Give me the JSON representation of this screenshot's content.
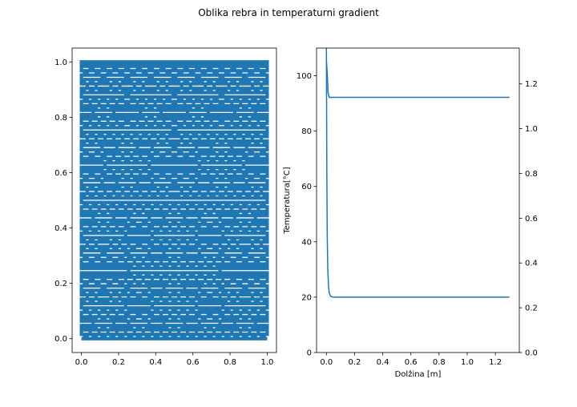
{
  "figure": {
    "title": "Oblika rebra in temperaturni gradient"
  },
  "colors": {
    "series": "#1f77b4",
    "axis": "#000000",
    "background": "#ffffff"
  },
  "chart_data": [
    {
      "type": "line",
      "description_of_shape": "space-filling Hilbert-like curve (order 6) drawn as a single thick line in the unit square",
      "curve_order": 6,
      "xlim": [
        -0.05,
        1.05
      ],
      "ylim": [
        -0.05,
        1.05
      ],
      "xticks": [
        "0.0",
        "0.2",
        "0.4",
        "0.6",
        "0.8",
        "1.0"
      ],
      "yticks": [
        "0.0",
        "0.2",
        "0.4",
        "0.6",
        "0.8",
        "1.0"
      ],
      "xlabel": "",
      "ylabel": "",
      "title": ""
    },
    {
      "type": "line",
      "xlabel": "Dolžina [m]",
      "ylabel": "Temperatura[°C]",
      "title": "",
      "xlim": [
        -0.07,
        1.37
      ],
      "ylim": [
        0,
        110
      ],
      "xticks": [
        "0.0",
        "0.2",
        "0.4",
        "0.6",
        "0.8",
        "1.0",
        "1.2"
      ],
      "yticks": [
        "0",
        "20",
        "40",
        "60",
        "80",
        "100"
      ],
      "series": [
        {
          "axis": "left",
          "x": [
            0.0,
            0.003,
            0.006,
            0.01,
            0.015,
            0.02,
            0.03,
            0.05,
            0.1,
            0.3,
            0.6,
            1.0,
            1.3
          ],
          "y": [
            110,
            65,
            42,
            30,
            24,
            21.5,
            20.3,
            20.0,
            20.0,
            20.0,
            20.0,
            20.0,
            20.0
          ]
        },
        {
          "axis": "right",
          "x": [
            0.0,
            0.006,
            0.012,
            0.02,
            0.04,
            0.1,
            0.5,
            1.0,
            1.3
          ],
          "y": [
            1.3,
            1.25,
            1.16,
            1.14,
            1.14,
            1.14,
            1.14,
            1.14,
            1.14
          ]
        }
      ],
      "right_axis": {
        "ylim": [
          0.0,
          1.36
        ],
        "yticks": [
          "0.0",
          "0.2",
          "0.4",
          "0.6",
          "0.8",
          "1.0",
          "1.2"
        ]
      }
    }
  ]
}
